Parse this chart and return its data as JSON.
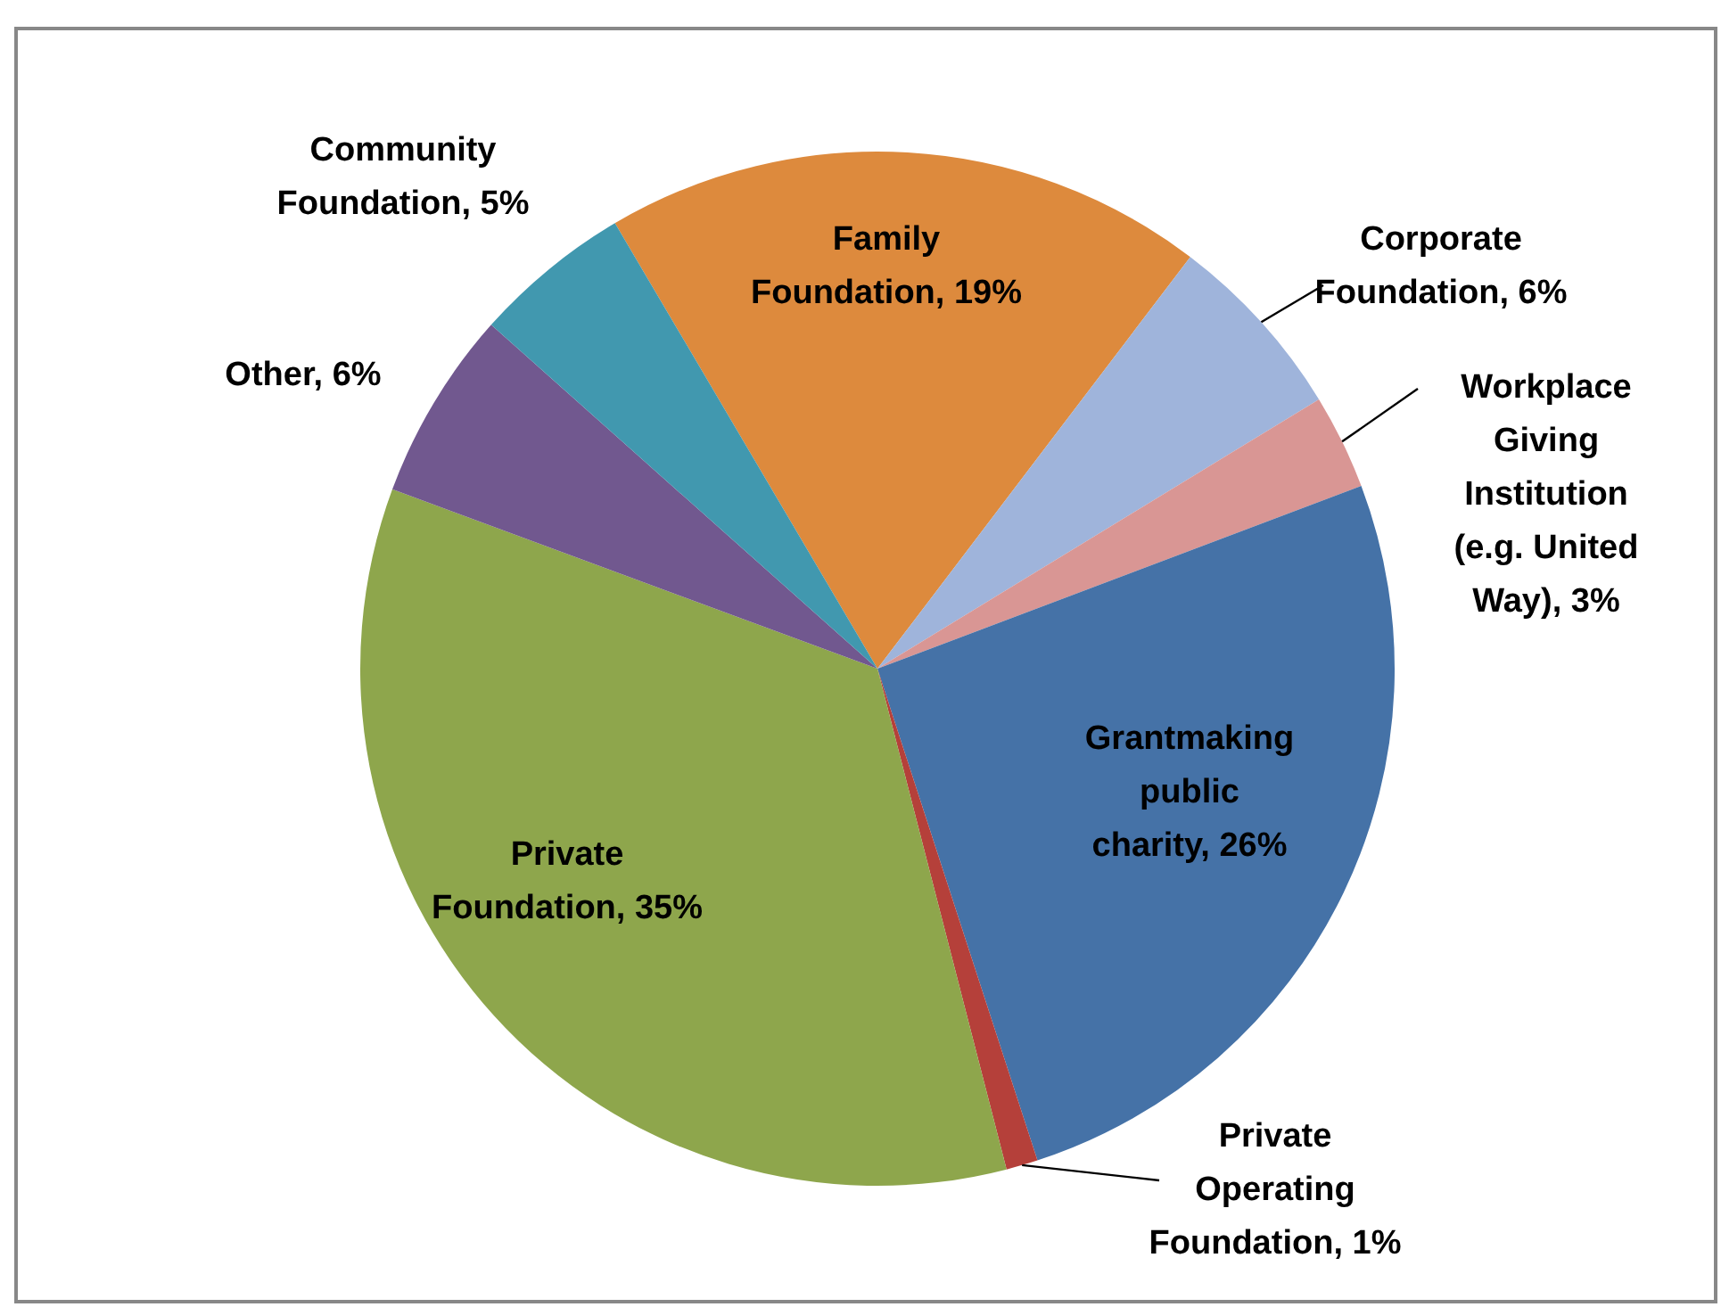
{
  "chart_data": {
    "type": "pie",
    "categories": [
      "Family Foundation",
      "Corporate Foundation",
      "Workplace Giving Institution (e.g. United Way)",
      "Grantmaking public charity",
      "Private Operating Foundation",
      "Private Foundation",
      "Other ",
      "Community Foundation"
    ],
    "values": [
      19,
      6,
      3,
      26,
      1,
      35,
      6,
      5
    ],
    "value_labels": [
      "19%",
      "6%",
      "3%",
      "26%",
      "1%",
      "35%",
      "6%",
      "5%"
    ],
    "colors": [
      "#dd8a3d",
      "#9fb4db",
      "#d99694",
      "#4572a7",
      "#b5403a",
      "#8ea64c",
      "#71588f",
      "#4198af"
    ],
    "legend": false
  }
}
